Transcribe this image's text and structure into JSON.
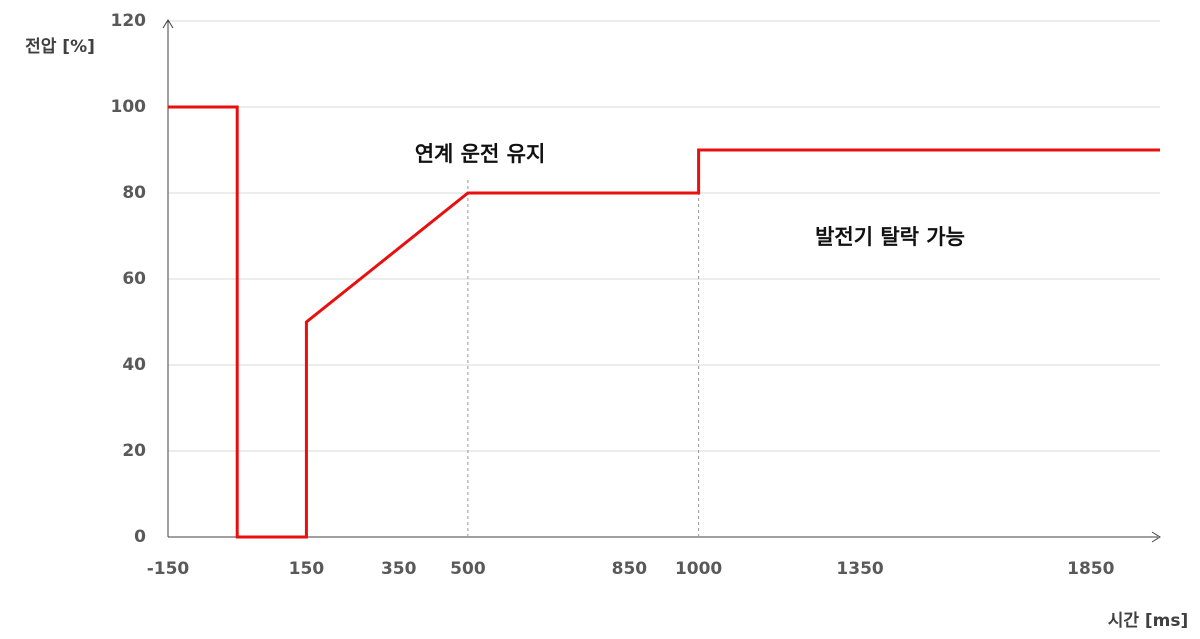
{
  "chart_data": {
    "type": "line",
    "y_label": "전압 [%]",
    "x_label": "시간 [ms]",
    "xlim": [
      -150,
      2000
    ],
    "ylim": [
      0,
      120
    ],
    "xticks": [
      -150,
      150,
      350,
      500,
      850,
      1000,
      1350,
      1850
    ],
    "yticks": [
      0,
      20,
      40,
      60,
      80,
      100,
      120
    ],
    "grid": true,
    "vlines": [
      500,
      1000
    ],
    "series": [
      {
        "color": "#e8100f",
        "x": [
          -150,
          0,
          0,
          150,
          150,
          500,
          1000,
          1000,
          2000
        ],
        "values": [
          100,
          100,
          0,
          0,
          50,
          80,
          80,
          90,
          90
        ]
      }
    ],
    "annotations": [
      "연계 운전 유지",
      "발전기 탈락 가능"
    ]
  }
}
